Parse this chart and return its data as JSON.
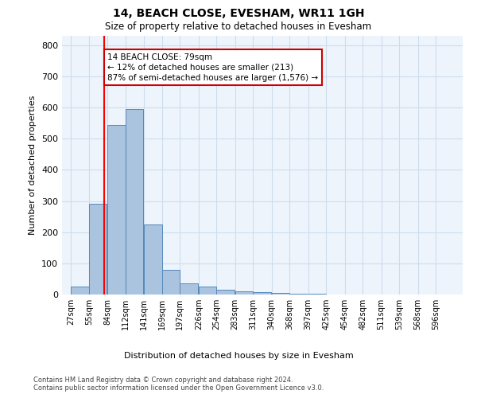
{
  "title": "14, BEACH CLOSE, EVESHAM, WR11 1GH",
  "subtitle": "Size of property relative to detached houses in Evesham",
  "xlabel": "Distribution of detached houses by size in Evesham",
  "ylabel": "Number of detached properties",
  "footnote1": "Contains HM Land Registry data © Crown copyright and database right 2024.",
  "footnote2": "Contains public sector information licensed under the Open Government Licence v3.0.",
  "bin_labels": [
    "27sqm",
    "55sqm",
    "84sqm",
    "112sqm",
    "141sqm",
    "169sqm",
    "197sqm",
    "226sqm",
    "254sqm",
    "283sqm",
    "311sqm",
    "340sqm",
    "368sqm",
    "397sqm",
    "425sqm",
    "454sqm",
    "482sqm",
    "511sqm",
    "539sqm",
    "568sqm",
    "596sqm"
  ],
  "bin_edges": [
    27,
    55,
    84,
    112,
    141,
    169,
    197,
    226,
    254,
    283,
    311,
    340,
    368,
    397,
    425,
    454,
    482,
    511,
    539,
    568,
    596
  ],
  "bar_heights": [
    25,
    290,
    545,
    595,
    225,
    80,
    35,
    25,
    15,
    10,
    8,
    5,
    3,
    2,
    1,
    1,
    0,
    0,
    0,
    0
  ],
  "bar_color": "#aac4e0",
  "bar_edge_color": "#5588bb",
  "grid_color": "#ccddee",
  "background_color": "#eef4fb",
  "red_line_x": 79,
  "annotation_text": "14 BEACH CLOSE: 79sqm\n← 12% of detached houses are smaller (213)\n87% of semi-detached houses are larger (1,576) →",
  "annotation_box_color": "#cc0000",
  "ylim": [
    0,
    830
  ],
  "yticks": [
    0,
    100,
    200,
    300,
    400,
    500,
    600,
    700,
    800
  ]
}
